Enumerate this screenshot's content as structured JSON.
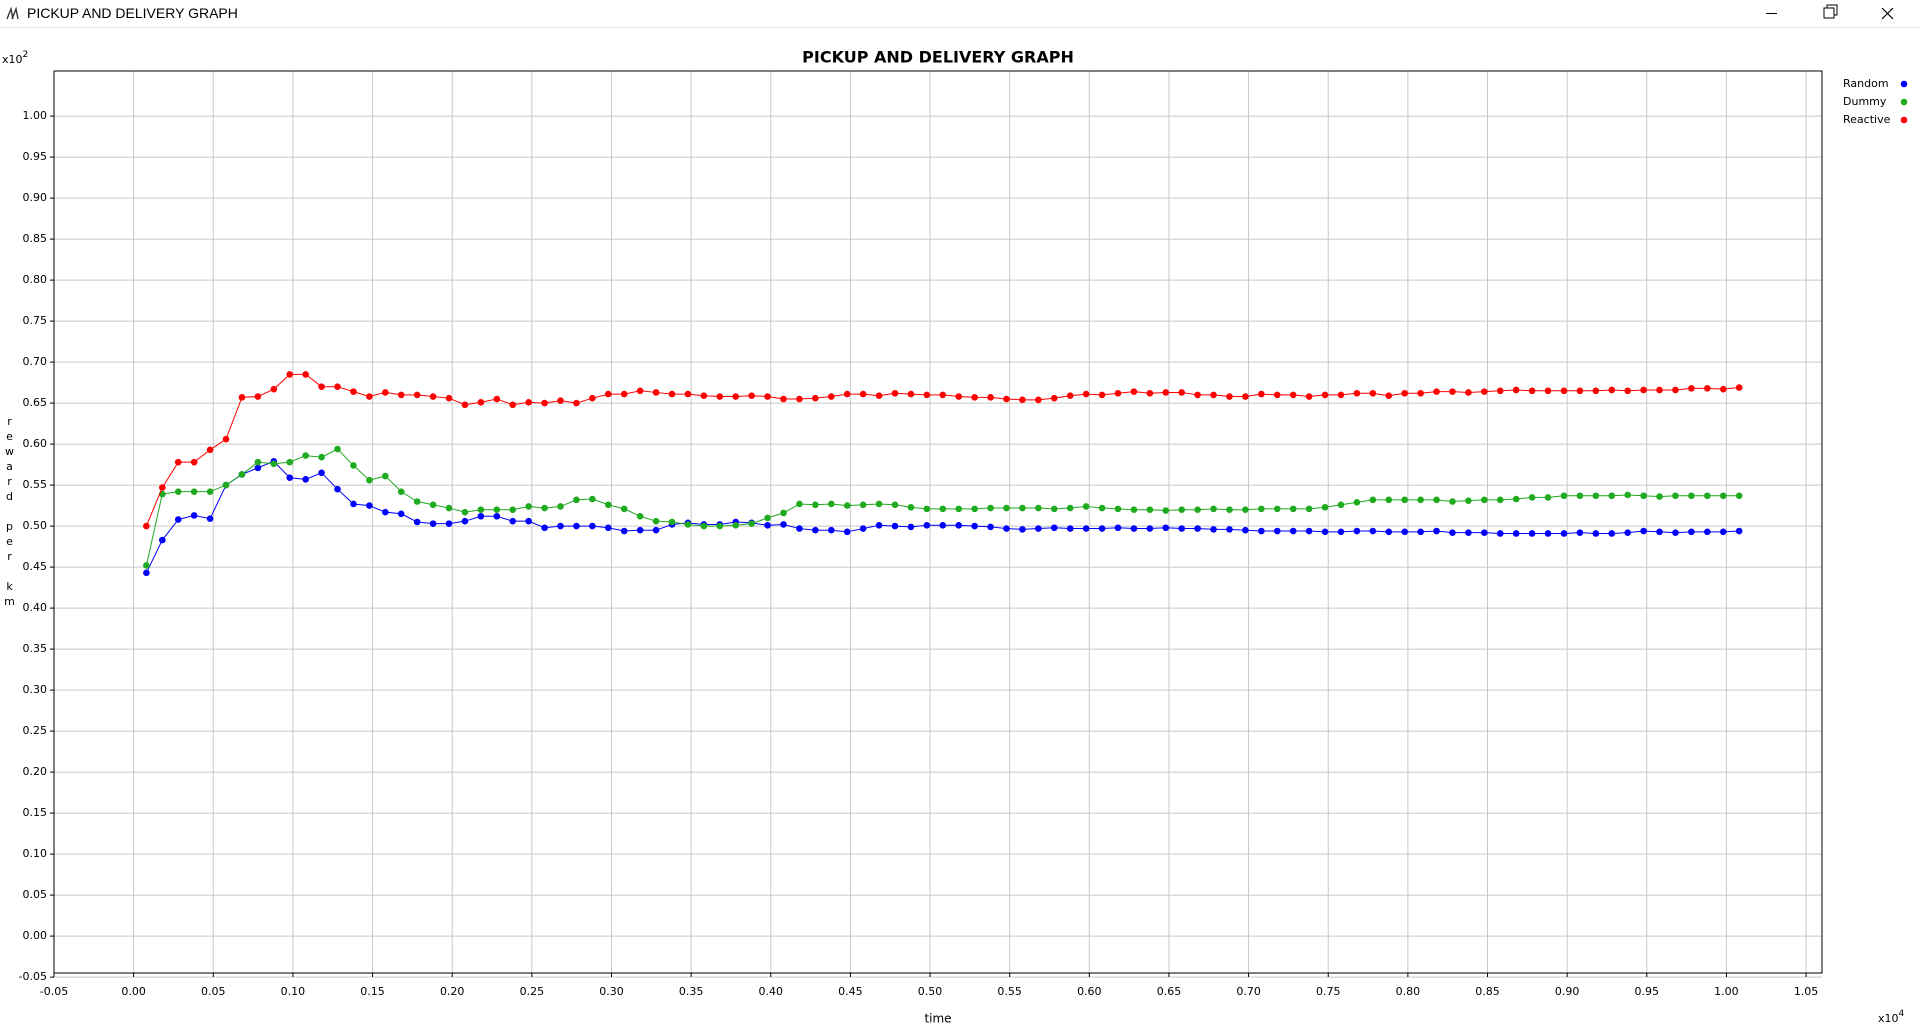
{
  "window": {
    "title": "PICKUP AND DELIVERY GRAPH"
  },
  "chart_data": {
    "type": "line",
    "title": "PICKUP AND DELIVERY GRAPH",
    "x_label": "time",
    "y_label": "reward per km",
    "y_multiplier": {
      "base": "x10",
      "exponent": 2
    },
    "x_multiplier": {
      "base": "x10",
      "exponent": 4
    },
    "grid": true,
    "markers": true,
    "legend_position": "right",
    "xlim": [
      -0.05,
      1.06
    ],
    "ylim": [
      -0.045,
      1.055
    ],
    "xticks": [
      -0.05,
      {
        "value": 0,
        "label": "0.00"
      },
      0.05,
      {
        "value": 0.1,
        "label": "0.10"
      },
      0.15,
      {
        "value": 0.2,
        "label": "0.20"
      },
      0.25,
      {
        "value": 0.3,
        "label": "0.30"
      },
      0.35,
      {
        "value": 0.4,
        "label": "0.40"
      },
      0.45,
      {
        "value": 0.5,
        "label": "0.50"
      },
      0.55,
      {
        "value": 0.6,
        "label": "0.60"
      },
      0.65,
      {
        "value": 0.7,
        "label": "0.70"
      },
      0.75,
      {
        "value": 0.8,
        "label": "0.80"
      },
      0.85,
      {
        "value": 0.9,
        "label": "0.90"
      },
      0.95,
      {
        "value": 1,
        "label": "1.00"
      },
      1.05
    ],
    "yticks": [
      -0.05,
      {
        "value": 0,
        "label": "0.00"
      },
      0.05,
      {
        "value": 0.1,
        "label": "0.10"
      },
      0.15,
      {
        "value": 0.2,
        "label": "0.20"
      },
      0.25,
      {
        "value": 0.3,
        "label": "0.30"
      },
      0.35,
      {
        "value": 0.4,
        "label": "0.40"
      },
      0.45,
      {
        "value": 0.5,
        "label": "0.50"
      },
      0.55,
      {
        "value": 0.6,
        "label": "0.60"
      },
      0.65,
      {
        "value": 0.7,
        "label": "0.70"
      },
      0.75,
      {
        "value": 0.8,
        "label": "0.80"
      },
      0.85,
      {
        "value": 0.9,
        "label": "0.90"
      },
      0.95,
      {
        "value": 1,
        "label": "1.00"
      }
    ],
    "x": [
      0.008,
      0.018,
      0.028,
      0.038,
      0.048,
      0.058,
      0.068,
      0.078,
      0.088,
      0.098,
      0.108,
      0.118,
      0.128,
      0.138,
      0.148,
      0.158,
      0.168,
      0.178,
      0.188,
      0.198,
      0.208,
      0.218,
      0.228,
      0.238,
      0.248,
      0.258,
      0.268,
      0.278,
      0.288,
      0.298,
      0.308,
      0.318,
      0.328,
      0.338,
      0.348,
      0.358,
      0.368,
      0.378,
      0.388,
      0.398,
      0.408,
      0.418,
      0.428,
      0.438,
      0.448,
      0.458,
      0.468,
      0.478,
      0.488,
      0.498,
      0.508,
      0.518,
      0.528,
      0.538,
      0.548,
      0.558,
      0.568,
      0.578,
      0.588,
      0.598,
      0.608,
      0.618,
      0.628,
      0.638,
      0.648,
      0.658,
      0.668,
      0.678,
      0.688,
      0.698,
      0.708,
      0.718,
      0.728,
      0.738,
      0.748,
      0.758,
      0.768,
      0.778,
      0.788,
      0.798,
      0.808,
      0.818,
      0.828,
      0.838,
      0.848,
      0.858,
      0.868,
      0.878,
      0.888,
      0.898,
      0.908,
      0.918,
      0.928,
      0.938,
      0.948,
      0.958,
      0.968,
      0.978,
      0.988,
      0.998,
      1.008
    ],
    "series": [
      {
        "name": "Random",
        "color": "#0000ff",
        "values": [
          0.443,
          0.483,
          0.508,
          0.513,
          0.509,
          0.55,
          0.563,
          0.571,
          0.579,
          0.559,
          0.557,
          0.565,
          0.545,
          0.527,
          0.525,
          0.517,
          0.515,
          0.505,
          0.503,
          0.503,
          0.506,
          0.512,
          0.512,
          0.506,
          0.506,
          0.498,
          0.5,
          0.5,
          0.5,
          0.498,
          0.494,
          0.495,
          0.495,
          0.502,
          0.504,
          0.502,
          0.502,
          0.505,
          0.504,
          0.501,
          0.502,
          0.497,
          0.495,
          0.495,
          0.493,
          0.497,
          0.501,
          0.5,
          0.499,
          0.501,
          0.501,
          0.501,
          0.5,
          0.499,
          0.497,
          0.496,
          0.497,
          0.498,
          0.497,
          0.497,
          0.497,
          0.498,
          0.497,
          0.497,
          0.498,
          0.497,
          0.497,
          0.496,
          0.496,
          0.495,
          0.494,
          0.494,
          0.494,
          0.494,
          0.493,
          0.493,
          0.494,
          0.494,
          0.493,
          0.493,
          0.493,
          0.494,
          0.492,
          0.492,
          0.492,
          0.491,
          0.491,
          0.491,
          0.491,
          0.491,
          0.492,
          0.491,
          0.491,
          0.492,
          0.494,
          0.493,
          0.492,
          0.493,
          0.493,
          0.493,
          0.494
        ]
      },
      {
        "name": "Dummy",
        "color": "#1faa1f",
        "values": [
          0.452,
          0.539,
          0.542,
          0.542,
          0.542,
          0.55,
          0.563,
          0.578,
          0.576,
          0.578,
          0.586,
          0.584,
          0.594,
          0.574,
          0.556,
          0.561,
          0.542,
          0.53,
          0.526,
          0.522,
          0.517,
          0.52,
          0.52,
          0.52,
          0.524,
          0.522,
          0.524,
          0.532,
          0.533,
          0.526,
          0.521,
          0.512,
          0.506,
          0.505,
          0.502,
          0.5,
          0.5,
          0.501,
          0.503,
          0.51,
          0.516,
          0.527,
          0.526,
          0.527,
          0.525,
          0.526,
          0.527,
          0.526,
          0.523,
          0.521,
          0.521,
          0.521,
          0.521,
          0.522,
          0.522,
          0.522,
          0.522,
          0.521,
          0.522,
          0.524,
          0.522,
          0.521,
          0.52,
          0.52,
          0.519,
          0.52,
          0.52,
          0.521,
          0.52,
          0.52,
          0.521,
          0.521,
          0.521,
          0.521,
          0.523,
          0.526,
          0.529,
          0.532,
          0.532,
          0.532,
          0.532,
          0.532,
          0.53,
          0.531,
          0.532,
          0.532,
          0.533,
          0.535,
          0.535,
          0.537,
          0.537,
          0.537,
          0.537,
          0.538,
          0.537,
          0.536,
          0.537,
          0.537,
          0.537,
          0.537,
          0.537
        ]
      },
      {
        "name": "Reactive",
        "color": "#ff0000",
        "values": [
          0.5,
          0.547,
          0.578,
          0.578,
          0.593,
          0.606,
          0.657,
          0.658,
          0.667,
          0.685,
          0.685,
          0.67,
          0.67,
          0.664,
          0.658,
          0.663,
          0.66,
          0.66,
          0.658,
          0.656,
          0.648,
          0.651,
          0.655,
          0.648,
          0.651,
          0.65,
          0.653,
          0.65,
          0.656,
          0.661,
          0.661,
          0.665,
          0.663,
          0.661,
          0.661,
          0.659,
          0.658,
          0.658,
          0.659,
          0.658,
          0.655,
          0.655,
          0.656,
          0.658,
          0.661,
          0.661,
          0.659,
          0.662,
          0.661,
          0.66,
          0.66,
          0.658,
          0.657,
          0.657,
          0.655,
          0.654,
          0.654,
          0.656,
          0.659,
          0.661,
          0.66,
          0.662,
          0.664,
          0.662,
          0.663,
          0.663,
          0.66,
          0.66,
          0.658,
          0.658,
          0.661,
          0.66,
          0.66,
          0.658,
          0.66,
          0.66,
          0.662,
          0.662,
          0.659,
          0.662,
          0.662,
          0.664,
          0.664,
          0.663,
          0.664,
          0.665,
          0.666,
          0.665,
          0.665,
          0.665,
          0.665,
          0.665,
          0.666,
          0.665,
          0.666,
          0.666,
          0.666,
          0.668,
          0.668,
          0.667,
          0.669
        ]
      }
    ]
  }
}
